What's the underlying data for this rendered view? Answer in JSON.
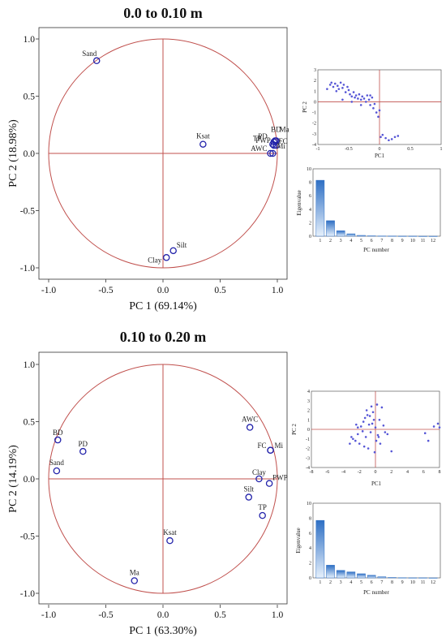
{
  "chart_data": [
    {
      "type": "scatter",
      "title": "0.0 to 0.10 m",
      "xlabel": "PC 1 (69.14%)",
      "ylabel": "PC 2 (18.98%)",
      "xlim": [
        -1.0,
        1.0
      ],
      "ylim": [
        -1.0,
        1.0
      ],
      "xticks": [
        "-1.0",
        "-0.5",
        "0.0",
        "0.5",
        "1.0"
      ],
      "yticks": [
        "1.0",
        "0.5",
        "0.0",
        "-0.5",
        "-1.0"
      ],
      "points": [
        {
          "label": "Sand",
          "x": -0.58,
          "y": 0.81
        },
        {
          "label": "Ksat",
          "x": 0.35,
          "y": 0.08
        },
        {
          "label": "PD",
          "x": 0.97,
          "y": 0.1
        },
        {
          "label": "BD",
          "x": 0.98,
          "y": 0.11
        },
        {
          "label": "Ma",
          "x": 0.99,
          "y": 0.11
        },
        {
          "label": "TP",
          "x": 0.96,
          "y": 0.08
        },
        {
          "label": "PWP",
          "x": 0.97,
          "y": 0.07
        },
        {
          "label": "FC",
          "x": 0.99,
          "y": 0.07
        },
        {
          "label": "AWC",
          "x": 0.94,
          "y": 0.0
        },
        {
          "label": "Mi",
          "x": 0.96,
          "y": 0.0
        },
        {
          "label": "Clay",
          "x": 0.03,
          "y": -0.91
        },
        {
          "label": "Silt",
          "x": 0.09,
          "y": -0.85
        }
      ]
    },
    {
      "type": "scatter",
      "xlabel": "PC1",
      "ylabel": "PC 2",
      "xlim": [
        -1.0,
        1.0
      ],
      "ylim": [
        -4,
        3
      ],
      "xticks": [
        "-1",
        "-0.5",
        "0",
        "0.5",
        "1"
      ],
      "yticks": [
        "3",
        "2",
        "1",
        "0",
        "-1",
        "-2",
        "-3",
        "-4"
      ],
      "x": [
        -0.85,
        -0.8,
        -0.78,
        -0.75,
        -0.72,
        -0.7,
        -0.68,
        -0.66,
        -0.63,
        -0.6,
        -0.58,
        -0.55,
        -0.52,
        -0.5,
        -0.48,
        -0.45,
        -0.42,
        -0.4,
        -0.38,
        -0.35,
        -0.33,
        -0.3,
        -0.28,
        -0.25,
        -0.22,
        -0.2,
        -0.17,
        -0.15,
        -0.12,
        -0.1,
        -0.08,
        -0.05,
        -0.02,
        0.0,
        0.02,
        0.05,
        0.1,
        0.15,
        0.2,
        0.25,
        0.3,
        -0.6,
        -0.45,
        -0.3,
        -0.15
      ],
      "y": [
        1.2,
        1.6,
        1.8,
        1.4,
        1.7,
        1.0,
        1.5,
        1.2,
        1.8,
        1.3,
        1.6,
        0.9,
        1.4,
        1.1,
        0.7,
        0.5,
        0.9,
        0.4,
        0.6,
        0.3,
        0.7,
        0.2,
        0.5,
        0.3,
        0.0,
        0.6,
        0.2,
        -0.3,
        0.4,
        -0.6,
        -0.2,
        -1.0,
        -1.4,
        -0.8,
        -3.3,
        -3.1,
        -3.4,
        -3.6,
        -3.5,
        -3.3,
        -3.2,
        0.2,
        0.0,
        -0.3,
        0.6
      ]
    },
    {
      "type": "bar",
      "xlabel": "PC number",
      "ylabel": "Eigenvalue",
      "ylim": [
        0,
        10
      ],
      "yticks": [
        "10",
        "8",
        "6",
        "4",
        "2",
        "0"
      ],
      "categories": [
        "1",
        "2",
        "3",
        "4",
        "5",
        "6",
        "7",
        "8",
        "9",
        "10",
        "11",
        "12"
      ],
      "values": [
        8.3,
        2.3,
        0.8,
        0.35,
        0.12,
        0.05,
        0.03,
        0.02,
        0.01,
        0.01,
        0.0,
        0.0
      ]
    },
    {
      "type": "scatter",
      "title": "0.10 to 0.20 m",
      "xlabel": "PC 1 (63.30%)",
      "ylabel": "PC 2 (14.19%)",
      "xlim": [
        -1.0,
        1.0
      ],
      "ylim": [
        -1.0,
        1.0
      ],
      "xticks": [
        "-1.0",
        "-0.5",
        "0.0",
        "0.5",
        "1.0"
      ],
      "yticks": [
        "1.0",
        "0.5",
        "0.0",
        "-0.5",
        "-1.0"
      ],
      "points": [
        {
          "label": "AWC",
          "x": 0.76,
          "y": 0.45
        },
        {
          "label": "FC",
          "x": 0.94,
          "y": 0.25
        },
        {
          "label": "Mi",
          "x": 0.94,
          "y": 0.25
        },
        {
          "label": "Clay",
          "x": 0.84,
          "y": 0.0
        },
        {
          "label": "PWP",
          "x": 0.93,
          "y": -0.04
        },
        {
          "label": "Silt",
          "x": 0.75,
          "y": -0.16
        },
        {
          "label": "TP",
          "x": 0.87,
          "y": -0.32
        },
        {
          "label": "BD",
          "x": -0.92,
          "y": 0.34
        },
        {
          "label": "PD",
          "x": -0.7,
          "y": 0.24
        },
        {
          "label": "Sand",
          "x": -0.93,
          "y": 0.07
        },
        {
          "label": "Ksat",
          "x": 0.06,
          "y": -0.54
        },
        {
          "label": "Ma",
          "x": -0.25,
          "y": -0.89
        }
      ]
    },
    {
      "type": "scatter",
      "xlabel": "PC1",
      "ylabel": "PC 2",
      "xlim": [
        -8,
        8
      ],
      "ylim": [
        -4,
        4
      ],
      "xticks": [
        "-8",
        "-6",
        "-4",
        "-2",
        "0",
        "2",
        "4",
        "6",
        "8"
      ],
      "yticks": [
        "4",
        "3",
        "2",
        "1",
        "0",
        "-1",
        "-2",
        "-3",
        "-4"
      ],
      "x": [
        -3.0,
        -2.5,
        -2.2,
        -2.0,
        -1.8,
        -1.5,
        -1.3,
        -1.1,
        -1.0,
        -0.8,
        -0.6,
        -0.5,
        -0.3,
        -0.2,
        0.0,
        0.2,
        0.4,
        0.6,
        1.0,
        1.5,
        2.0,
        -2.8,
        -1.6,
        -0.9,
        -0.4,
        0.1,
        0.8,
        -2.2,
        -1.2,
        -0.7,
        0.3,
        6.2,
        6.6,
        7.3,
        7.8,
        8.0,
        -1.4,
        -0.1,
        0.5,
        1.2,
        -3.2,
        -2.4
      ],
      "y": [
        -0.8,
        -1.2,
        -0.5,
        -1.5,
        0.3,
        0.8,
        1.2,
        2.0,
        1.5,
        0.5,
        -0.3,
        2.4,
        1.8,
        1.0,
        0.2,
        2.6,
        -0.8,
        -1.5,
        0.4,
        -0.5,
        -2.3,
        -1.0,
        -0.2,
        -2.0,
        0.6,
        -1.2,
        2.3,
        0.2,
        -0.8,
        1.4,
        -0.6,
        -0.4,
        -1.2,
        0.3,
        0.6,
        0.2,
        -1.8,
        -2.4,
        1.0,
        -0.3,
        -1.5,
        0.5
      ]
    },
    {
      "type": "bar",
      "xlabel": "PC number",
      "ylabel": "Eigenvalue",
      "ylim": [
        0,
        10
      ],
      "yticks": [
        "10",
        "8",
        "6",
        "4",
        "2",
        "0"
      ],
      "categories": [
        "1",
        "2",
        "3",
        "4",
        "5",
        "6",
        "7",
        "8",
        "9",
        "10",
        "11",
        "12"
      ],
      "values": [
        7.7,
        1.7,
        1.0,
        0.8,
        0.55,
        0.35,
        0.15,
        0.05,
        0.02,
        0.01,
        0.01,
        0.0
      ]
    }
  ],
  "colors": {
    "circle": "#c0504d",
    "point": "#2222aa",
    "scatter_dot": "#5656d6",
    "bar_top": "#2e6fc4",
    "bar_bottom": "#e6f0fb"
  }
}
